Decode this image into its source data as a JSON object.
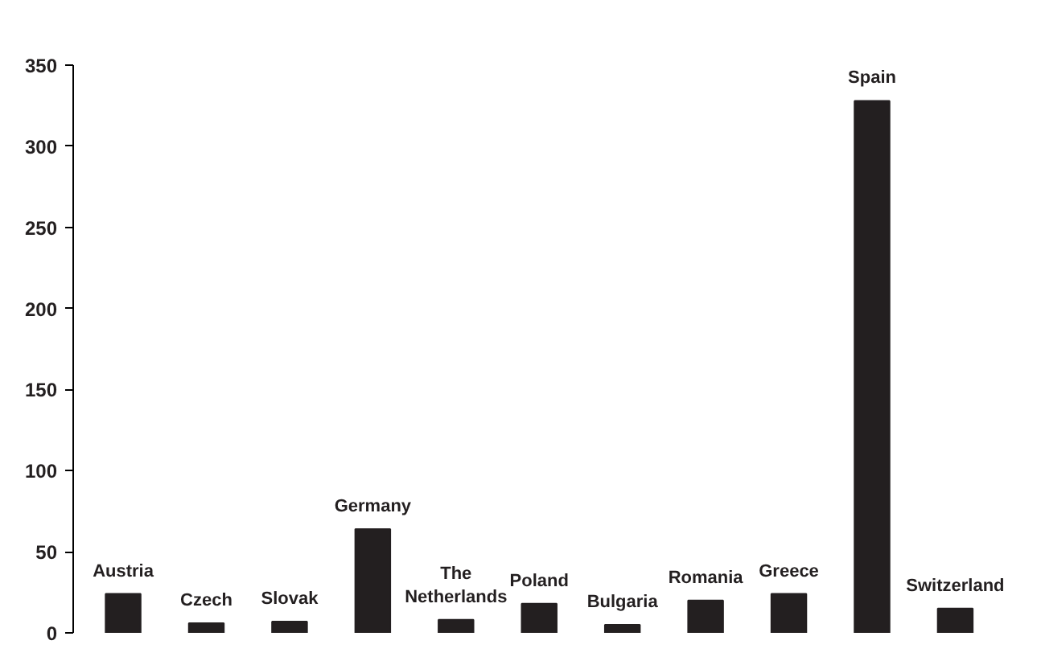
{
  "chart_data": {
    "type": "bar",
    "categories": [
      "Austria",
      "Czech",
      "Slovak",
      "Germany",
      "The Netherlands",
      "Poland",
      "Bulgaria",
      "Romania",
      "Greece",
      "Spain",
      "Switzerland"
    ],
    "values": [
      24,
      6,
      7,
      64,
      8,
      18,
      5,
      20,
      24,
      328,
      15
    ],
    "color": "#231f20",
    "ylim": [
      0,
      350
    ],
    "yticks": [
      0,
      50,
      100,
      150,
      200,
      250,
      300,
      350
    ],
    "tick_labels": "y",
    "grid": false
  }
}
